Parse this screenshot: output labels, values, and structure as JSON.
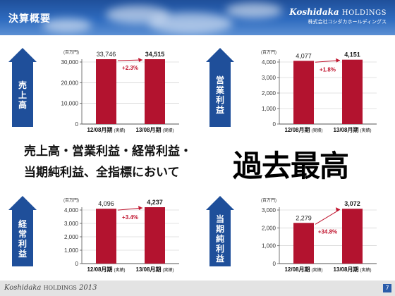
{
  "header": {
    "title": "決算概要",
    "brand_main": "Koshidaka",
    "brand_holdings": "HOLDINGS",
    "brand_sub": "株式会社コシダカホールディングス"
  },
  "headline": {
    "line1": "売上高・営業利益・経常利益・",
    "line2": "当期純利益、全指標において",
    "emphasis": "過去最高"
  },
  "footer": {
    "brand": "Koshidaka",
    "holdings": "HOLDINGS",
    "year": "2013",
    "page": "7"
  },
  "colors": {
    "bar": "#b3132f",
    "arrow": "#1f4f9a",
    "growth": "#c0142e"
  },
  "chart_data": [
    {
      "type": "bar",
      "label": "売上高",
      "unit": "(百万円)",
      "categories": [
        "12/08月期",
        "13/08月期"
      ],
      "category_notes": [
        "(実績)",
        "(実績)"
      ],
      "values": [
        33746,
        34515
      ],
      "value_labels": [
        "33,746",
        "34,515"
      ],
      "growth": "+2.3%",
      "ylim": [
        0,
        30000
      ],
      "yticks": [
        "0",
        "10,000",
        "20,000",
        "30,000"
      ]
    },
    {
      "type": "bar",
      "label": "営業利益",
      "unit": "(百万円)",
      "categories": [
        "12/08月期",
        "13/08月期"
      ],
      "category_notes": [
        "(実績)",
        "(実績)"
      ],
      "values": [
        4077,
        4151
      ],
      "value_labels": [
        "4,077",
        "4,151"
      ],
      "growth": "+1.8%",
      "ylim": [
        0,
        4000
      ],
      "yticks": [
        "0",
        "1,000",
        "2,000",
        "3,000",
        "4,000"
      ]
    },
    {
      "type": "bar",
      "label": "経常利益",
      "unit": "(百万円)",
      "categories": [
        "12/08月期",
        "13/08月期"
      ],
      "category_notes": [
        "(実績)",
        "(実績)"
      ],
      "values": [
        4096,
        4237
      ],
      "value_labels": [
        "4,096",
        "4,237"
      ],
      "growth": "+3.4%",
      "ylim": [
        0,
        4000
      ],
      "yticks": [
        "0",
        "1,000",
        "2,000",
        "3,000",
        "4,000"
      ]
    },
    {
      "type": "bar",
      "label": "当期純利益",
      "unit": "(百万円)",
      "categories": [
        "12/08月期",
        "13/08月期"
      ],
      "category_notes": [
        "(実績)",
        "(実績)"
      ],
      "values": [
        2279,
        3072
      ],
      "value_labels": [
        "2,279",
        "3,072"
      ],
      "growth": "+34.8%",
      "ylim": [
        0,
        3000
      ],
      "yticks": [
        "0",
        "1,000",
        "2,000",
        "3,000"
      ]
    }
  ]
}
